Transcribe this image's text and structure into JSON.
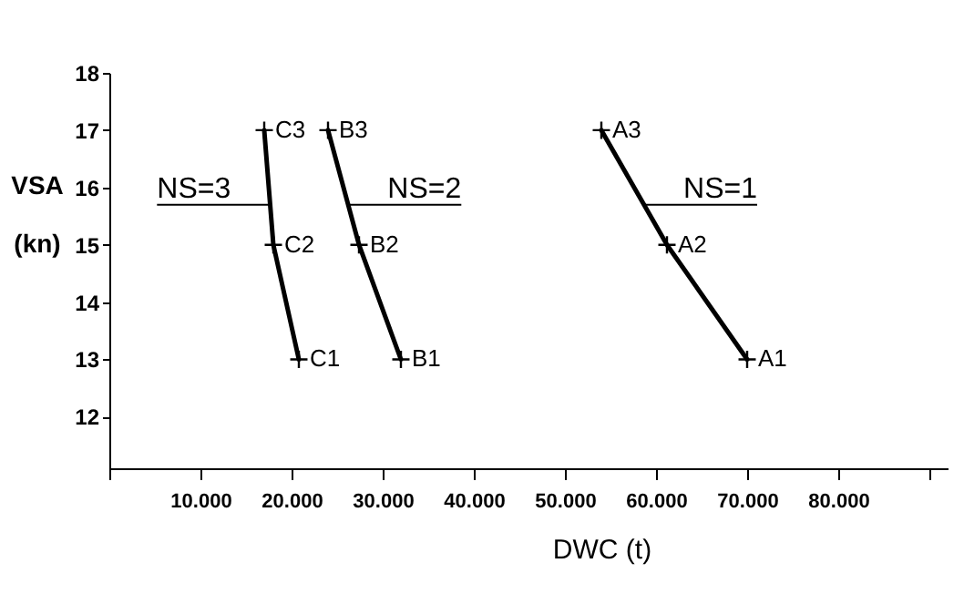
{
  "chart_data": {
    "type": "line",
    "xlabel": "DWC (t)",
    "ylabel": "VSA (kn)",
    "xlim": [
      0,
      92000
    ],
    "ylim": [
      11.1,
      18
    ],
    "xticks": [
      {
        "value": 0,
        "label": null
      },
      {
        "value": 10000,
        "label": "10.000"
      },
      {
        "value": 20000,
        "label": "20.000"
      },
      {
        "value": 30000,
        "label": "30.000"
      },
      {
        "value": 40000,
        "label": "40.000"
      },
      {
        "value": 50000,
        "label": "50.000"
      },
      {
        "value": 60000,
        "label": "60.000"
      },
      {
        "value": 70000,
        "label": "70.000"
      },
      {
        "value": 80000,
        "label": "80.000"
      },
      {
        "value": 90000,
        "label": null
      }
    ],
    "yticks": [
      12,
      13,
      14,
      15,
      16,
      17,
      18
    ],
    "marker": "cross",
    "line_style": "solid",
    "series": [
      {
        "name": "NS=3",
        "color": "#000000",
        "x": [
          20800,
          18000,
          17000
        ],
        "values": [
          13,
          15,
          17
        ]
      },
      {
        "name": "NS=2",
        "color": "#000000",
        "x": [
          32000,
          27400,
          24000
        ],
        "values": [
          13,
          15,
          17
        ]
      },
      {
        "name": "NS=1",
        "color": "#000000",
        "x": [
          70000,
          61200,
          54000
        ],
        "values": [
          13,
          15,
          17
        ]
      }
    ],
    "annotations": [
      {
        "text": "C1",
        "x": 20800,
        "y": 13
      },
      {
        "text": "C2",
        "x": 18000,
        "y": 15
      },
      {
        "text": "C3",
        "x": 17000,
        "y": 17
      },
      {
        "text": "B1",
        "x": 32000,
        "y": 13
      },
      {
        "text": "B2",
        "x": 27400,
        "y": 15
      },
      {
        "text": "B3",
        "x": 24000,
        "y": 17
      },
      {
        "text": "A1",
        "x": 70000,
        "y": 13
      },
      {
        "text": "A2",
        "x": 61200,
        "y": 15
      },
      {
        "text": "A3",
        "x": 54000,
        "y": 17
      }
    ]
  }
}
